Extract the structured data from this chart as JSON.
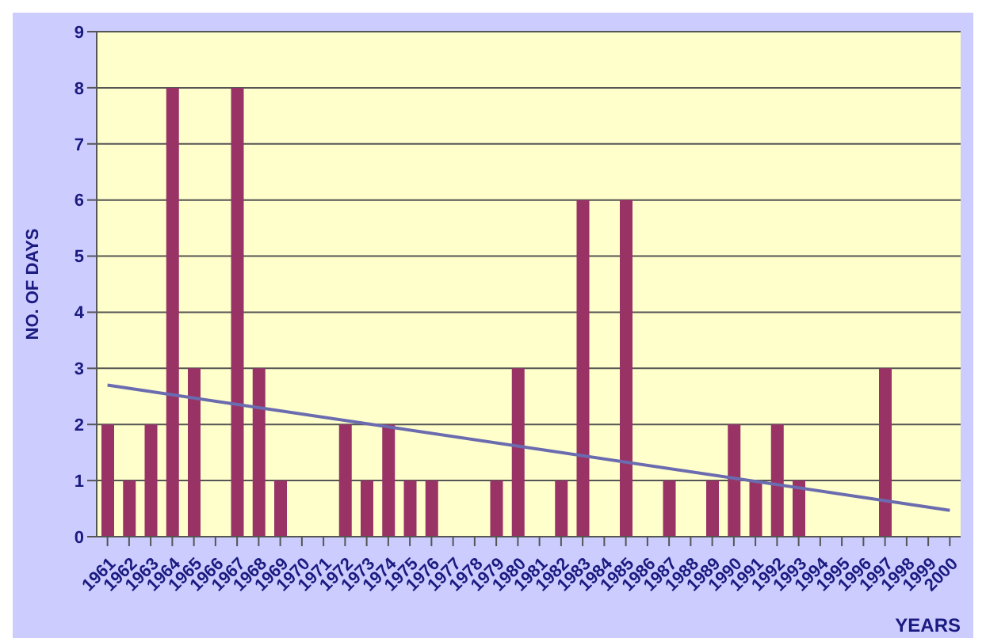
{
  "chart_data": {
    "type": "bar",
    "xlabel": "YEARS",
    "ylabel": "NO. OF DAYS",
    "categories": [
      "1961",
      "1962",
      "1963",
      "1964",
      "1965",
      "1966",
      "1967",
      "1968",
      "1969",
      "1970",
      "1971",
      "1972",
      "1973",
      "1974",
      "1975",
      "1976",
      "1977",
      "1978",
      "1979",
      "1980",
      "1981",
      "1982",
      "1983",
      "1984",
      "1985",
      "1986",
      "1987",
      "1988",
      "1989",
      "1990",
      "1991",
      "1992",
      "1993",
      "1994",
      "1995",
      "1996",
      "1997",
      "1998",
      "1999",
      "2000"
    ],
    "series": [
      {
        "color": "#993366",
        "values": [
          2,
          1,
          2,
          8,
          3,
          0,
          8,
          3,
          1,
          0,
          0,
          2,
          1,
          2,
          1,
          1,
          0,
          0,
          1,
          3,
          0,
          1,
          6,
          0,
          6,
          0,
          1,
          0,
          1,
          2,
          1,
          2,
          1,
          0,
          0,
          0,
          3,
          0,
          0,
          0
        ]
      },
      {
        "type": "line",
        "color": "#6b6bb0",
        "values": [
          2.7,
          null,
          null,
          null,
          null,
          null,
          null,
          null,
          null,
          null,
          null,
          null,
          null,
          null,
          null,
          null,
          null,
          null,
          null,
          null,
          null,
          null,
          null,
          null,
          null,
          null,
          null,
          null,
          null,
          null,
          null,
          null,
          null,
          null,
          null,
          null,
          null,
          null,
          null,
          0.47
        ]
      }
    ],
    "ylim": [
      0,
      9
    ],
    "yticks": [
      0,
      1,
      2,
      3,
      4,
      5,
      6,
      7,
      8,
      9
    ],
    "grid": "y",
    "marker": "none"
  }
}
